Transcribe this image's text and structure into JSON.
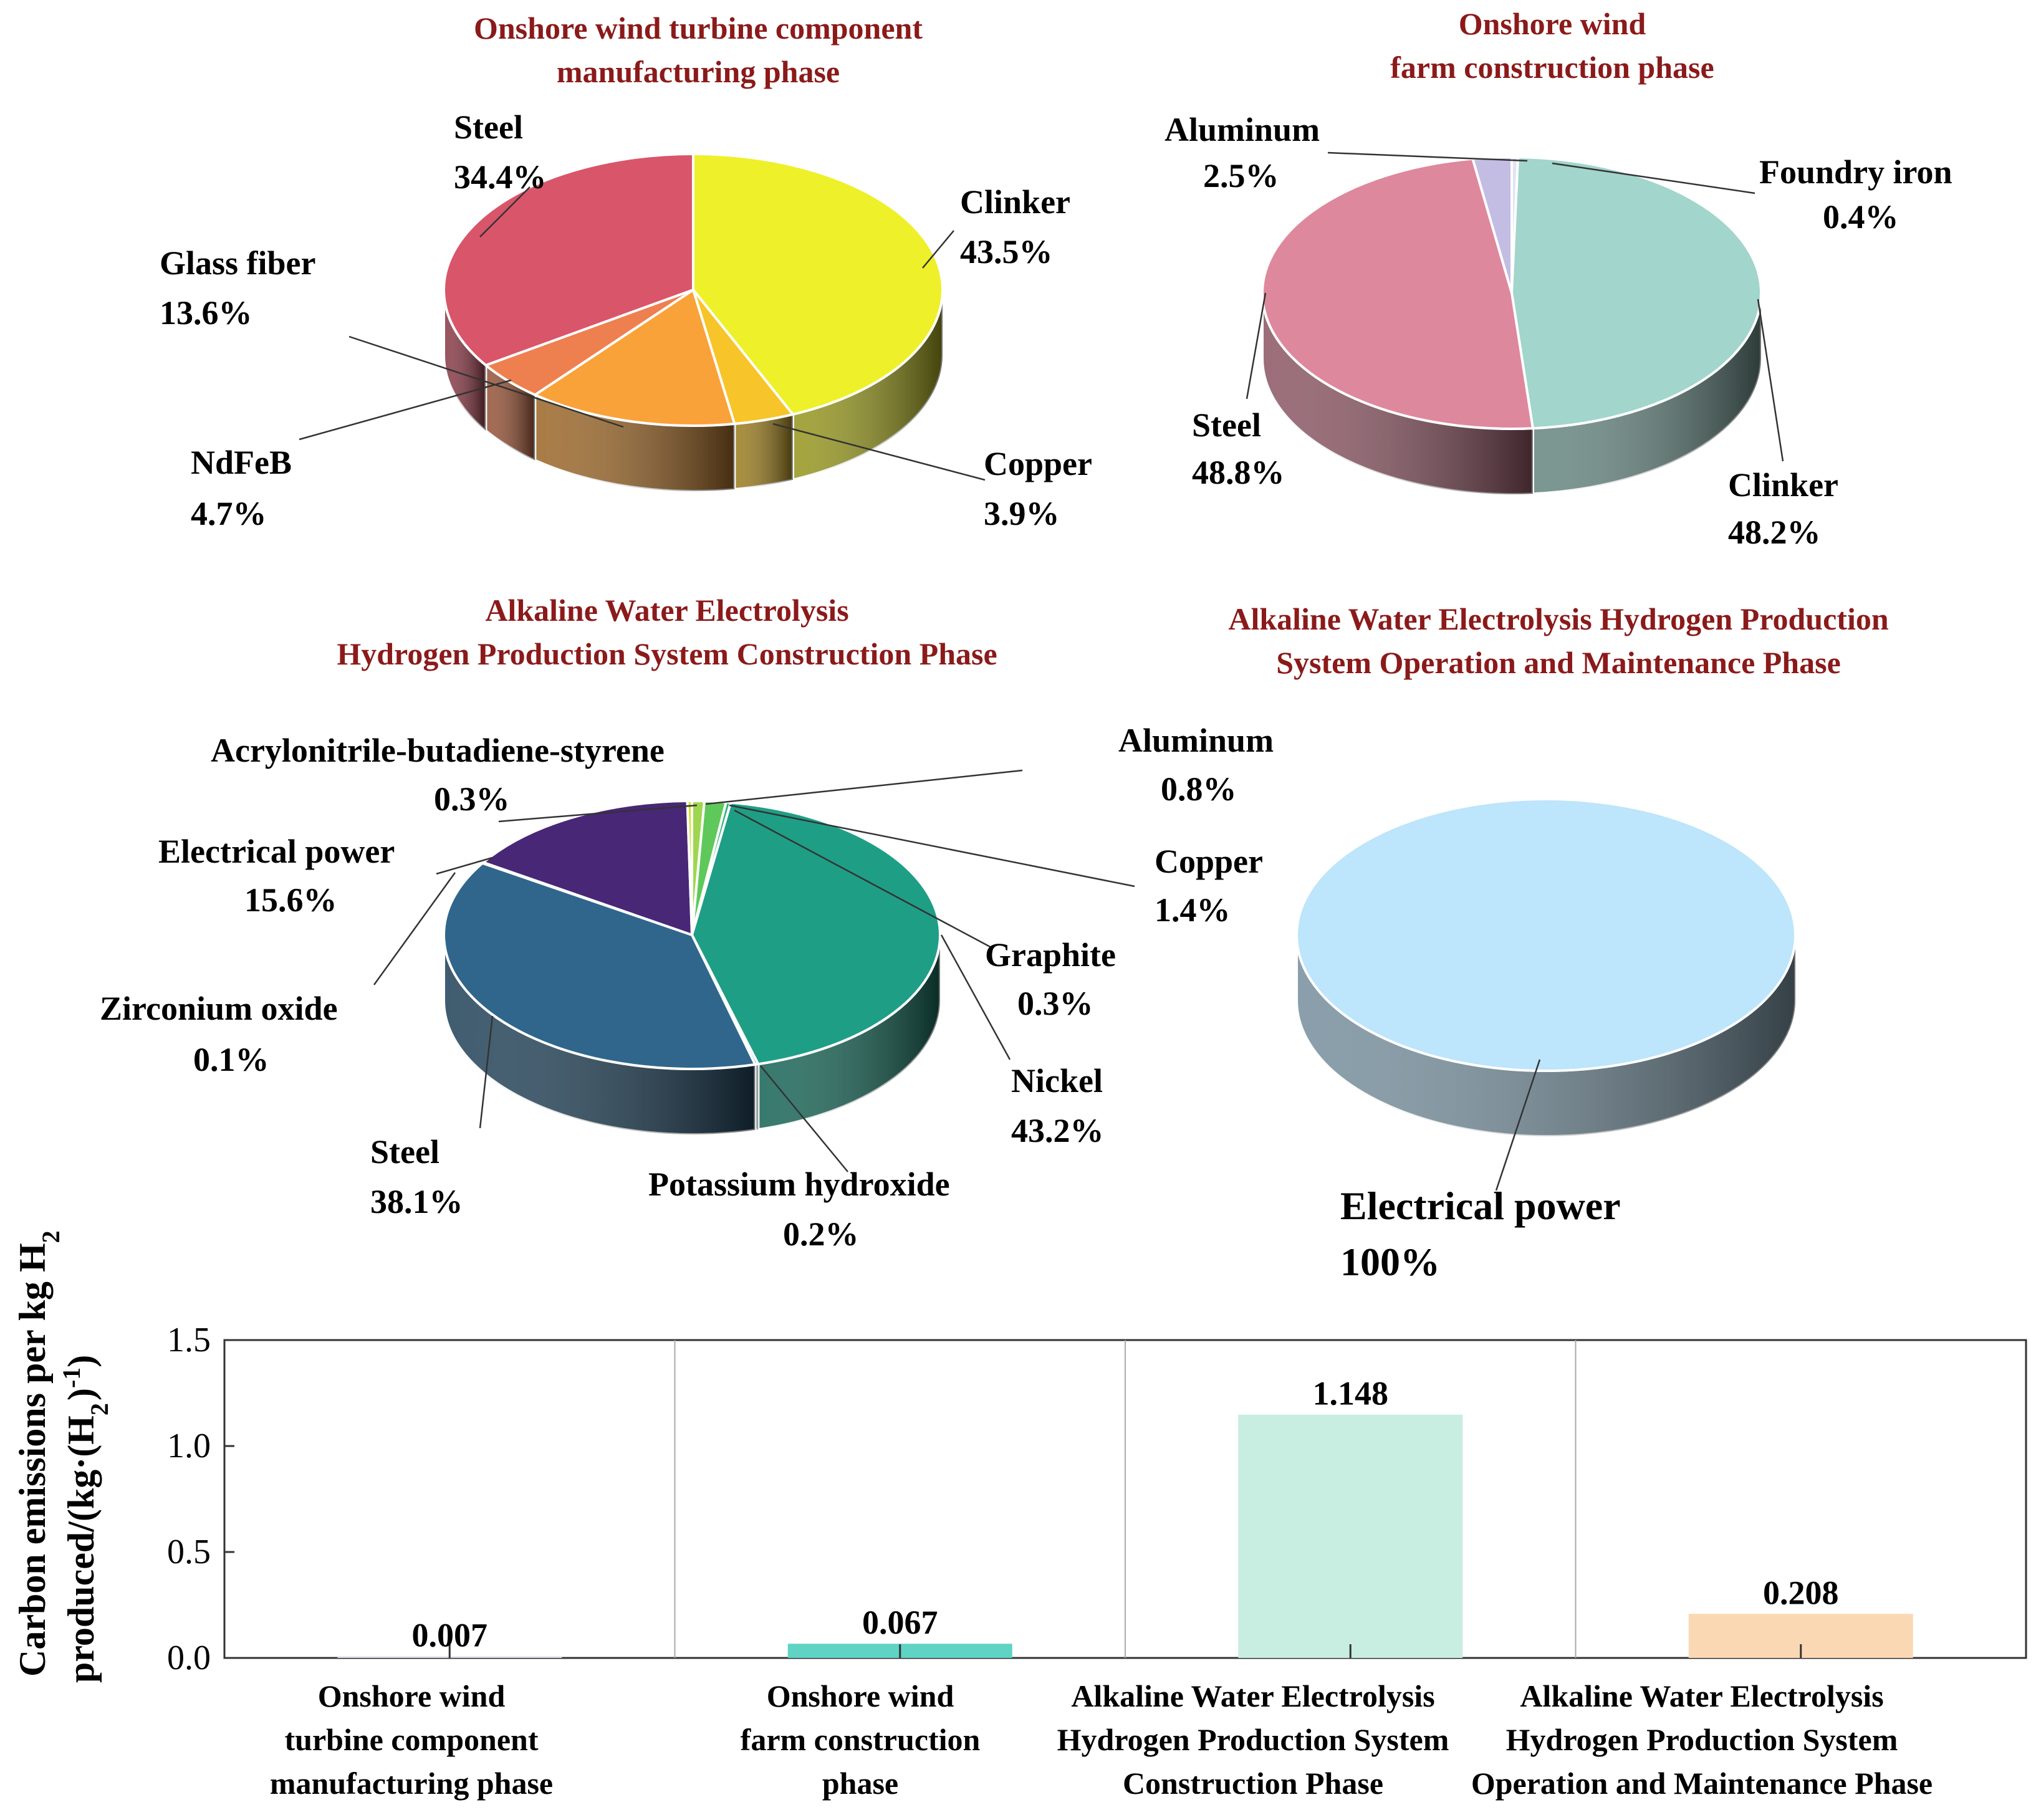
{
  "chart_data": [
    {
      "type": "pie",
      "title": [
        "Onshore wind turbine component",
        "manufacturing phase"
      ],
      "slices": [
        {
          "name": "Clinker",
          "pct": "43.5%",
          "value": 43.5,
          "color": "#eef02a"
        },
        {
          "name": "Copper",
          "pct": "3.9%",
          "value": 3.9,
          "color": "#f7c42a"
        },
        {
          "name": "Glass fiber",
          "pct": "13.6%",
          "value": 13.6,
          "color": "#f9a23a"
        },
        {
          "name": "NdFeB",
          "pct": "4.7%",
          "value": 4.7,
          "color": "#ee8050"
        },
        {
          "name": "Steel",
          "pct": "34.4%",
          "value": 34.4,
          "color": "#d9556a"
        }
      ]
    },
    {
      "type": "pie",
      "title": [
        "Onshore wind",
        "farm construction phase"
      ],
      "slices": [
        {
          "name": "Foundry iron",
          "pct": "0.4%",
          "value": 0.4,
          "color": "#dfe4f3"
        },
        {
          "name": "Clinker",
          "pct": "48.2%",
          "value": 48.2,
          "color": "#a2d5cb"
        },
        {
          "name": "Steel",
          "pct": "48.8%",
          "value": 48.8,
          "color": "#de889d"
        },
        {
          "name": "Aluminum",
          "pct": "2.5%",
          "value": 2.5,
          "color": "#c3bde4"
        }
      ]
    },
    {
      "type": "pie",
      "title": [
        "Alkaline Water Electrolysis",
        "Hydrogen Production System Construction Phase"
      ],
      "slices": [
        {
          "name": "Aluminum",
          "pct": "0.8%",
          "value": 0.8,
          "color": "#9fd650"
        },
        {
          "name": "Copper",
          "pct": "1.4%",
          "value": 1.4,
          "color": "#5ec95a"
        },
        {
          "name": "Graphite",
          "pct": "0.3%",
          "value": 0.3,
          "color": "#2fb57a"
        },
        {
          "name": "Nickel",
          "pct": "43.2%",
          "value": 43.2,
          "color": "#1f9e86"
        },
        {
          "name": "Potassium hydroxide",
          "pct": "0.2%",
          "value": 0.2,
          "color": "#22888a"
        },
        {
          "name": "Steel",
          "pct": "38.1%",
          "value": 38.1,
          "color": "#30668b"
        },
        {
          "name": "Zirconium oxide",
          "pct": "0.1%",
          "value": 0.1,
          "color": "#3a4c8a"
        },
        {
          "name": "Electrical power",
          "pct": "15.6%",
          "value": 15.6,
          "color": "#472776"
        },
        {
          "name": "Acrylonitrile-butadiene-styrene",
          "pct": "0.3%",
          "value": 0.3,
          "color": "#d0e11c"
        }
      ]
    },
    {
      "type": "pie",
      "title": [
        "Alkaline Water Electrolysis Hydrogen Production",
        "System Operation and Maintenance Phase"
      ],
      "slices": [
        {
          "name": "Electrical power",
          "pct": "100%",
          "value": 100,
          "color": "#bde5fb"
        }
      ]
    },
    {
      "type": "bar",
      "ylabel_line1": "Carbon emissions per kg H",
      "ylabel_line1_sub": "2",
      "ylabel_line2_a": "produced/(kg·(H",
      "ylabel_line2_sub": "2",
      "ylabel_line2_b": ")",
      "ylabel_line2_sup": "-1",
      "ylabel_line2_c": ")",
      "ylim": [
        0,
        1.5
      ],
      "yticks": [
        "0.0",
        "0.5",
        "1.0",
        "1.5"
      ],
      "categories": [
        [
          "Onshore wind",
          "turbine component",
          "manufacturing phase"
        ],
        [
          "Onshore wind",
          "farm construction",
          "phase"
        ],
        [
          "Alkaline Water Electrolysis",
          "Hydrogen Production System",
          "Construction Phase"
        ],
        [
          "Alkaline Water Electrolysis",
          "Hydrogen Production System",
          "Operation and Maintenance Phase"
        ]
      ],
      "values": [
        0.007,
        0.067,
        1.148,
        0.208
      ],
      "value_labels": [
        "0.007",
        "0.067",
        "1.148",
        "0.208"
      ],
      "colors": [
        "#e0d9ee",
        "#5fd3c4",
        "#c8ede1",
        "#fbd8b4"
      ]
    }
  ]
}
